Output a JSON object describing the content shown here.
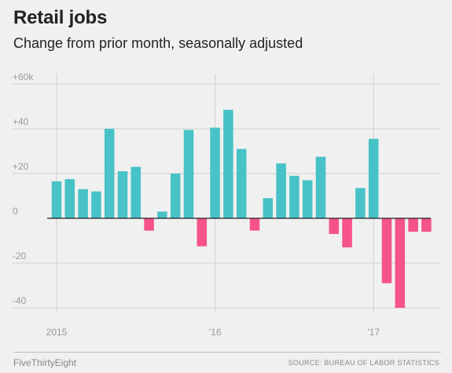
{
  "header": {
    "title": "Retail jobs",
    "subtitle": "Change from prior month, seasonally adjusted"
  },
  "footer": {
    "brand": "FiveThirtyEight",
    "source": "SOURCE: BUREAU OF LABOR STATISTICS"
  },
  "colors": {
    "positive": "#47c2c7",
    "negative": "#f5538a",
    "grid": "#cfcfcf",
    "zero_line": "#222222",
    "tick_label": "#999999",
    "background": "#f0f0f0"
  },
  "chart_data": {
    "type": "bar",
    "title": "Retail jobs",
    "subtitle": "Change from prior month, seasonally adjusted",
    "xlabel": "",
    "ylabel": "",
    "ylim": [
      -45,
      65
    ],
    "grid": true,
    "y_ticks": [
      {
        "value": 60,
        "label": "+60k"
      },
      {
        "value": 40,
        "label": "+40"
      },
      {
        "value": 20,
        "label": "+20"
      },
      {
        "value": 0,
        "label": "0"
      },
      {
        "value": -20,
        "label": "-20"
      },
      {
        "value": -40,
        "label": "-40"
      }
    ],
    "x_ticks": [
      {
        "index": 0,
        "label": "2015"
      },
      {
        "index": 12,
        "label": "’16"
      },
      {
        "index": 24,
        "label": "’17"
      }
    ],
    "categories": [
      "Jan 2015",
      "Feb 2015",
      "Mar 2015",
      "Apr 2015",
      "May 2015",
      "Jun 2015",
      "Jul 2015",
      "Aug 2015",
      "Sep 2015",
      "Oct 2015",
      "Nov 2015",
      "Dec 2015",
      "Jan 2016",
      "Feb 2016",
      "Mar 2016",
      "Apr 2016",
      "May 2016",
      "Jun 2016",
      "Jul 2016",
      "Aug 2016",
      "Sep 2016",
      "Oct 2016",
      "Nov 2016",
      "Dec 2016",
      "Jan 2017",
      "Feb 2017",
      "Mar 2017",
      "Apr 2017",
      "May 2017"
    ],
    "values": [
      16.5,
      17.5,
      13,
      12,
      40,
      21,
      23,
      -5.5,
      3,
      20,
      39.5,
      -12.5,
      40.5,
      48.5,
      31,
      -5.5,
      9,
      24.5,
      19,
      17,
      27.5,
      -7,
      -13,
      13.5,
      35.5,
      -29,
      -40,
      -6,
      -6
    ]
  }
}
